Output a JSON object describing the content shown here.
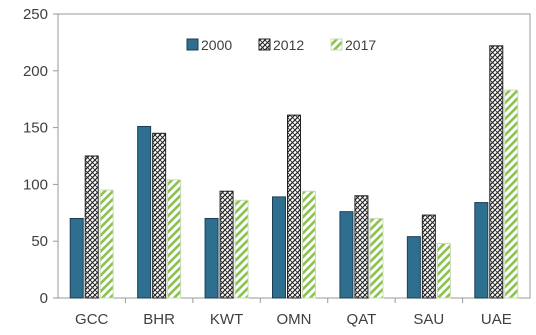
{
  "chart_data": {
    "type": "bar",
    "categories": [
      "GCC",
      "BHR",
      "KWT",
      "OMN",
      "QAT",
      "SAU",
      "UAE"
    ],
    "series": [
      {
        "name": "2000",
        "values": [
          70,
          151,
          70,
          89,
          76,
          54,
          84
        ],
        "color": "#2e6e8e",
        "pattern": "solid"
      },
      {
        "name": "2012",
        "values": [
          125,
          145,
          94,
          161,
          90,
          73,
          222
        ],
        "color": "#222222",
        "pattern": "crosshatch"
      },
      {
        "name": "2017",
        "values": [
          95,
          104,
          86,
          94,
          70,
          48,
          183
        ],
        "color": "#8cc152",
        "pattern": "diagonal-stripes"
      }
    ],
    "ylim": [
      0,
      250
    ],
    "yticks": [
      0,
      50,
      100,
      150,
      200,
      250
    ],
    "title": "",
    "xlabel": "",
    "ylabel": "",
    "grid": false,
    "legend_position": "top-center"
  }
}
